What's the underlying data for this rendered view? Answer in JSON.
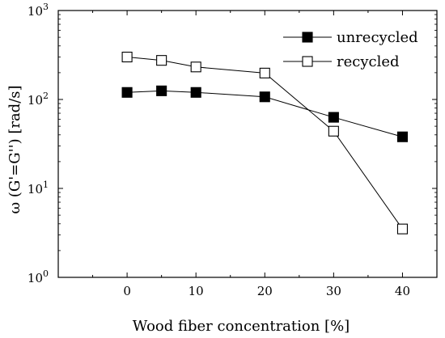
{
  "chart_data": {
    "type": "line",
    "title": "",
    "xlabel": "Wood fiber concentration [%]",
    "ylabel": "ω (G'=G'') [rad/s]",
    "xlim": [
      -10,
      45
    ],
    "ylim": [
      1,
      1000
    ],
    "y_scale": "log",
    "x_ticks": [
      0,
      10,
      20,
      30,
      40
    ],
    "y_ticks": [
      {
        "value": 1,
        "base": "10",
        "exp": "0"
      },
      {
        "value": 10,
        "base": "10",
        "exp": "1"
      },
      {
        "value": 100,
        "base": "10",
        "exp": "2"
      },
      {
        "value": 1000,
        "base": "10",
        "exp": "3"
      }
    ],
    "grid": false,
    "legend_position": "top-right",
    "series": [
      {
        "name": "unrecycled",
        "marker": "filled-square",
        "color": "#000000",
        "x": [
          0,
          5,
          10,
          20,
          30,
          40
        ],
        "y": [
          120,
          125,
          120,
          107,
          63,
          38
        ]
      },
      {
        "name": "recycled",
        "marker": "open-square",
        "color": "#000000",
        "x": [
          0,
          5,
          10,
          20,
          30,
          40
        ],
        "y": [
          300,
          275,
          232,
          198,
          44,
          3.5
        ]
      }
    ]
  }
}
